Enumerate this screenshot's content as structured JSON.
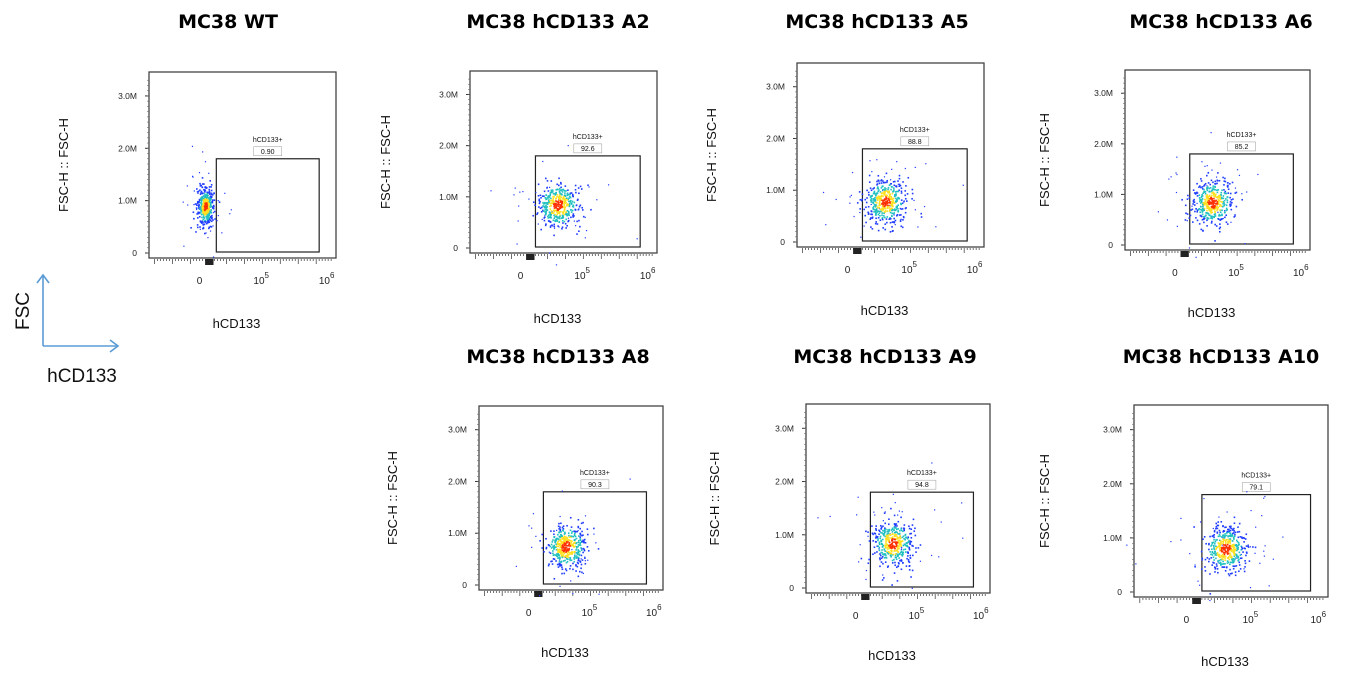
{
  "chart_data": [
    {
      "type": "scatter",
      "title": "MC38  WT",
      "xlabel": "hCD133",
      "ylabel": "FSC-H :: FSC-H",
      "y_ticks": [
        "0",
        "1.0M",
        "2.0M",
        "3.0M"
      ],
      "y_tick_values": [
        0,
        1000000,
        2000000,
        3000000
      ],
      "x_ticks": [
        "0",
        "10^5",
        "10^6"
      ],
      "gate": {
        "name": "hCD133+",
        "percent": "0.90"
      },
      "density_center": {
        "x": "≈0",
        "y": 900000
      }
    },
    {
      "type": "scatter",
      "title": "MC38 hCD133 A2",
      "xlabel": "hCD133",
      "ylabel": "FSC-H :: FSC-H",
      "y_ticks": [
        "0",
        "1.0M",
        "2.0M",
        "3.0M"
      ],
      "y_tick_values": [
        0,
        1000000,
        2000000,
        3000000
      ],
      "x_ticks": [
        "0",
        "10^5",
        "10^6"
      ],
      "gate": {
        "name": "hCD133+",
        "percent": "92.6"
      },
      "density_center": {
        "x": "≈10^4.5",
        "y": 850000
      }
    },
    {
      "type": "scatter",
      "title": "MC38 hCD133 A5",
      "xlabel": "hCD133",
      "ylabel": "FSC-H :: FSC-H",
      "y_ticks": [
        "0",
        "1.0M",
        "2.0M",
        "3.0M"
      ],
      "y_tick_values": [
        0,
        1000000,
        2000000,
        3000000
      ],
      "x_ticks": [
        "0",
        "10^5",
        "10^6"
      ],
      "gate": {
        "name": "hCD133+",
        "percent": "88.8"
      },
      "density_center": {
        "x": "≈10^4.5",
        "y": 800000
      }
    },
    {
      "type": "scatter",
      "title": "MC38 hCD133 A6",
      "xlabel": "hCD133",
      "ylabel": "FSC-H :: FSC-H",
      "y_ticks": [
        "0",
        "1.0M",
        "2.0M",
        "3.0M"
      ],
      "y_tick_values": [
        0,
        1000000,
        2000000,
        3000000
      ],
      "x_ticks": [
        "0",
        "10^5",
        "10^6"
      ],
      "gate": {
        "name": "hCD133+",
        "percent": "85.2"
      },
      "density_center": {
        "x": "≈10^4.5",
        "y": 850000
      }
    },
    {
      "type": "scatter",
      "title": "MC38 hCD133 A8",
      "xlabel": "hCD133",
      "ylabel": "FSC-H :: FSC-H",
      "y_ticks": [
        "0",
        "1.0M",
        "2.0M",
        "3.0M"
      ],
      "y_tick_values": [
        0,
        1000000,
        2000000,
        3000000
      ],
      "x_ticks": [
        "0",
        "10^5",
        "10^6"
      ],
      "gate": {
        "name": "hCD133+",
        "percent": "90.3"
      },
      "density_center": {
        "x": "≈10^4.5",
        "y": 750000
      }
    },
    {
      "type": "scatter",
      "title": "MC38 hCD133 A9",
      "xlabel": "hCD133",
      "ylabel": "FSC-H :: FSC-H",
      "y_ticks": [
        "0",
        "1.0M",
        "2.0M",
        "3.0M"
      ],
      "y_tick_values": [
        0,
        1000000,
        2000000,
        3000000
      ],
      "x_ticks": [
        "0",
        "10^5",
        "10^6"
      ],
      "gate": {
        "name": "hCD133+",
        "percent": "94.8"
      },
      "density_center": {
        "x": "≈10^4.5",
        "y": 850000
      }
    },
    {
      "type": "scatter",
      "title": "MC38 hCD133 A10",
      "xlabel": "hCD133",
      "ylabel": "FSC-H :: FSC-H",
      "y_ticks": [
        "0",
        "1.0M",
        "2.0M",
        "3.0M"
      ],
      "y_tick_values": [
        0,
        1000000,
        2000000,
        3000000
      ],
      "x_ticks": [
        "0",
        "10^5",
        "10^6"
      ],
      "gate": {
        "name": "hCD133+",
        "percent": "79.1"
      },
      "density_center": {
        "x": "≈10^4.5",
        "y": 800000
      }
    }
  ],
  "legend": {
    "y_label": "FSC",
    "x_label": "hCD133",
    "arrow_color": "#5b9bd5"
  },
  "colors": {
    "density_low": "#1f3cff",
    "density_mid": "#20c0c0",
    "density_high": "#ffe020",
    "density_peak": "#ff3000"
  }
}
